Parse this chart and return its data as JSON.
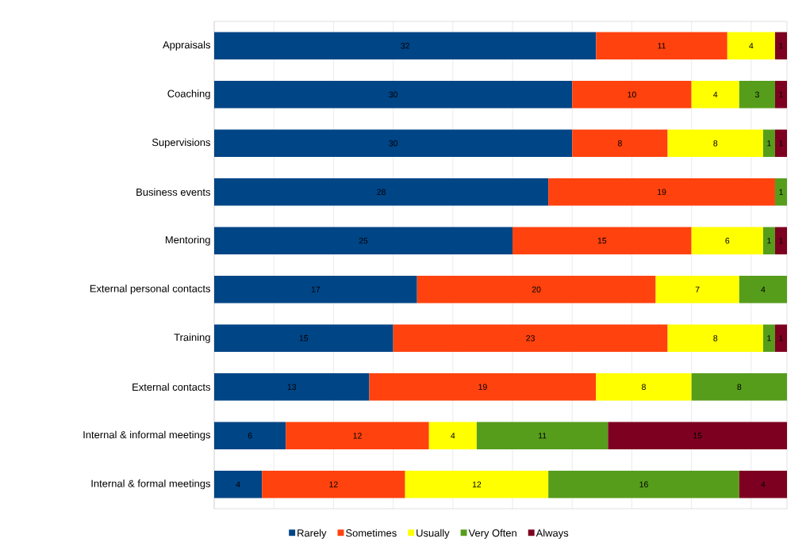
{
  "chart_data": {
    "type": "bar",
    "orientation": "horizontal",
    "stacked": true,
    "data_labels": true,
    "grid": "x",
    "legend": "bottom",
    "categories": [
      "Appraisals",
      "Coaching",
      "Supervisions",
      "Business events",
      "Mentoring",
      "External personal contacts",
      "Training",
      "External contacts",
      "Internal & informal meetings",
      "Internal & formal meetings"
    ],
    "xlim": [
      0,
      48
    ],
    "xticks": [
      {
        "value": 0,
        "label": null
      },
      {
        "value": 5,
        "label": null
      },
      {
        "value": 10,
        "label": null
      },
      {
        "value": 15,
        "label": null
      },
      {
        "value": 20,
        "label": null
      },
      {
        "value": 25,
        "label": null
      },
      {
        "value": 30,
        "label": null
      },
      {
        "value": 35,
        "label": null
      },
      {
        "value": 40,
        "label": null
      },
      {
        "value": 45,
        "label": null
      }
    ],
    "tick_labels": "y",
    "series": [
      {
        "name": "Rarely",
        "color": "#004586",
        "values": [
          32,
          30,
          30,
          28,
          25,
          17,
          15,
          13,
          6,
          4
        ]
      },
      {
        "name": "Sometimes",
        "color": "#ff420e",
        "values": [
          11,
          10,
          8,
          19,
          15,
          20,
          23,
          19,
          12,
          12
        ]
      },
      {
        "name": "Usually",
        "color": "#ffff00",
        "values": [
          4,
          4,
          8,
          null,
          6,
          7,
          8,
          8,
          4,
          12
        ]
      },
      {
        "name": "Very Often",
        "color": "#579d1c",
        "values": [
          null,
          3,
          1,
          1,
          1,
          4,
          1,
          8,
          11,
          16
        ]
      },
      {
        "name": "Always",
        "color": "#7e0021",
        "values": [
          1,
          1,
          1,
          null,
          1,
          null,
          1,
          null,
          15,
          4
        ]
      }
    ]
  }
}
